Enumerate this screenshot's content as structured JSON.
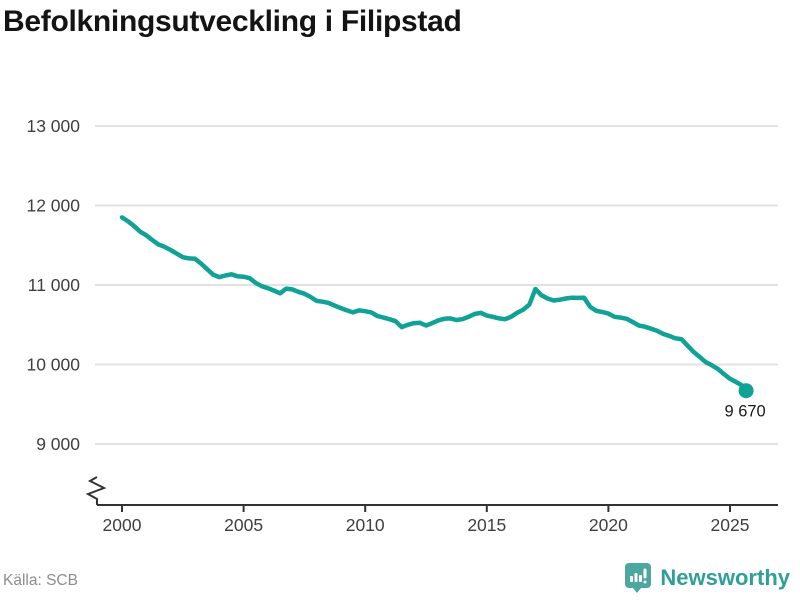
{
  "page": {
    "title": "Befolkningsutveckling i Filipstad"
  },
  "footer": {
    "source": "Källa: SCB",
    "brand": "Newsworthy"
  },
  "colors": {
    "line": "#10a296",
    "logo_icon": "#4ba7a0",
    "logo_text": "#2f9f99"
  },
  "chart_data": {
    "type": "line",
    "title": "Befolkningsutveckling i Filipstad",
    "xlabel": "",
    "ylabel": "",
    "grid": "horizontal",
    "legend": "none",
    "axis_break_bottom": true,
    "ylim_displayed": [
      9000,
      13000
    ],
    "xlim": [
      2000,
      2026
    ],
    "y_ticks": [
      {
        "value": 13000,
        "label": "13 000"
      },
      {
        "value": 12000,
        "label": "12 000"
      },
      {
        "value": 11000,
        "label": "11 000"
      },
      {
        "value": 10000,
        "label": "10 000"
      },
      {
        "value": 9000,
        "label": "9 000"
      }
    ],
    "x_ticks": [
      {
        "value": 2000,
        "label": "2000"
      },
      {
        "value": 2005,
        "label": "2005"
      },
      {
        "value": 2010,
        "label": "2010"
      },
      {
        "value": 2015,
        "label": "2015"
      },
      {
        "value": 2020,
        "label": "2020"
      },
      {
        "value": 2025,
        "label": "2025"
      }
    ],
    "line_color": "#10a296",
    "end_label": "9 670",
    "end_value": 9670,
    "series": [
      {
        "points": [
          [
            2000.0,
            11850
          ],
          [
            2000.25,
            11800
          ],
          [
            2000.5,
            11740
          ],
          [
            2000.75,
            11670
          ],
          [
            2001.0,
            11625
          ],
          [
            2001.25,
            11565
          ],
          [
            2001.5,
            11510
          ],
          [
            2001.75,
            11480
          ],
          [
            2002.0,
            11440
          ],
          [
            2002.25,
            11395
          ],
          [
            2002.5,
            11350
          ],
          [
            2002.75,
            11335
          ],
          [
            2003.0,
            11330
          ],
          [
            2003.25,
            11270
          ],
          [
            2003.5,
            11200
          ],
          [
            2003.75,
            11130
          ],
          [
            2004.0,
            11100
          ],
          [
            2004.25,
            11120
          ],
          [
            2004.5,
            11135
          ],
          [
            2004.75,
            11110
          ],
          [
            2005.0,
            11105
          ],
          [
            2005.25,
            11085
          ],
          [
            2005.5,
            11025
          ],
          [
            2005.75,
            10985
          ],
          [
            2006.0,
            10960
          ],
          [
            2006.25,
            10930
          ],
          [
            2006.5,
            10895
          ],
          [
            2006.75,
            10955
          ],
          [
            2007.0,
            10945
          ],
          [
            2007.25,
            10915
          ],
          [
            2007.5,
            10890
          ],
          [
            2007.75,
            10850
          ],
          [
            2008.0,
            10800
          ],
          [
            2008.25,
            10790
          ],
          [
            2008.5,
            10775
          ],
          [
            2008.75,
            10740
          ],
          [
            2009.0,
            10710
          ],
          [
            2009.25,
            10680
          ],
          [
            2009.5,
            10655
          ],
          [
            2009.75,
            10680
          ],
          [
            2010.0,
            10670
          ],
          [
            2010.25,
            10655
          ],
          [
            2010.5,
            10610
          ],
          [
            2010.75,
            10590
          ],
          [
            2011.0,
            10570
          ],
          [
            2011.25,
            10545
          ],
          [
            2011.5,
            10470
          ],
          [
            2011.75,
            10500
          ],
          [
            2012.0,
            10520
          ],
          [
            2012.25,
            10525
          ],
          [
            2012.5,
            10490
          ],
          [
            2012.75,
            10520
          ],
          [
            2013.0,
            10555
          ],
          [
            2013.25,
            10575
          ],
          [
            2013.5,
            10580
          ],
          [
            2013.75,
            10560
          ],
          [
            2014.0,
            10570
          ],
          [
            2014.25,
            10600
          ],
          [
            2014.5,
            10635
          ],
          [
            2014.75,
            10650
          ],
          [
            2015.0,
            10615
          ],
          [
            2015.25,
            10600
          ],
          [
            2015.5,
            10580
          ],
          [
            2015.75,
            10570
          ],
          [
            2016.0,
            10600
          ],
          [
            2016.25,
            10650
          ],
          [
            2016.5,
            10690
          ],
          [
            2016.75,
            10755
          ],
          [
            2017.0,
            10950
          ],
          [
            2017.25,
            10870
          ],
          [
            2017.5,
            10830
          ],
          [
            2017.75,
            10805
          ],
          [
            2018.0,
            10815
          ],
          [
            2018.25,
            10830
          ],
          [
            2018.5,
            10840
          ],
          [
            2018.75,
            10838
          ],
          [
            2019.0,
            10840
          ],
          [
            2019.25,
            10725
          ],
          [
            2019.5,
            10675
          ],
          [
            2019.75,
            10660
          ],
          [
            2020.0,
            10640
          ],
          [
            2020.25,
            10600
          ],
          [
            2020.5,
            10590
          ],
          [
            2020.75,
            10575
          ],
          [
            2021.0,
            10535
          ],
          [
            2021.25,
            10490
          ],
          [
            2021.5,
            10475
          ],
          [
            2021.75,
            10450
          ],
          [
            2022.0,
            10425
          ],
          [
            2022.25,
            10385
          ],
          [
            2022.5,
            10360
          ],
          [
            2022.75,
            10330
          ],
          [
            2023.0,
            10320
          ],
          [
            2023.25,
            10240
          ],
          [
            2023.5,
            10160
          ],
          [
            2023.75,
            10095
          ],
          [
            2024.0,
            10030
          ],
          [
            2024.25,
            9990
          ],
          [
            2024.5,
            9945
          ],
          [
            2024.75,
            9880
          ],
          [
            2025.0,
            9820
          ],
          [
            2025.25,
            9780
          ],
          [
            2025.5,
            9735
          ],
          [
            2025.66,
            9670
          ]
        ]
      }
    ]
  }
}
